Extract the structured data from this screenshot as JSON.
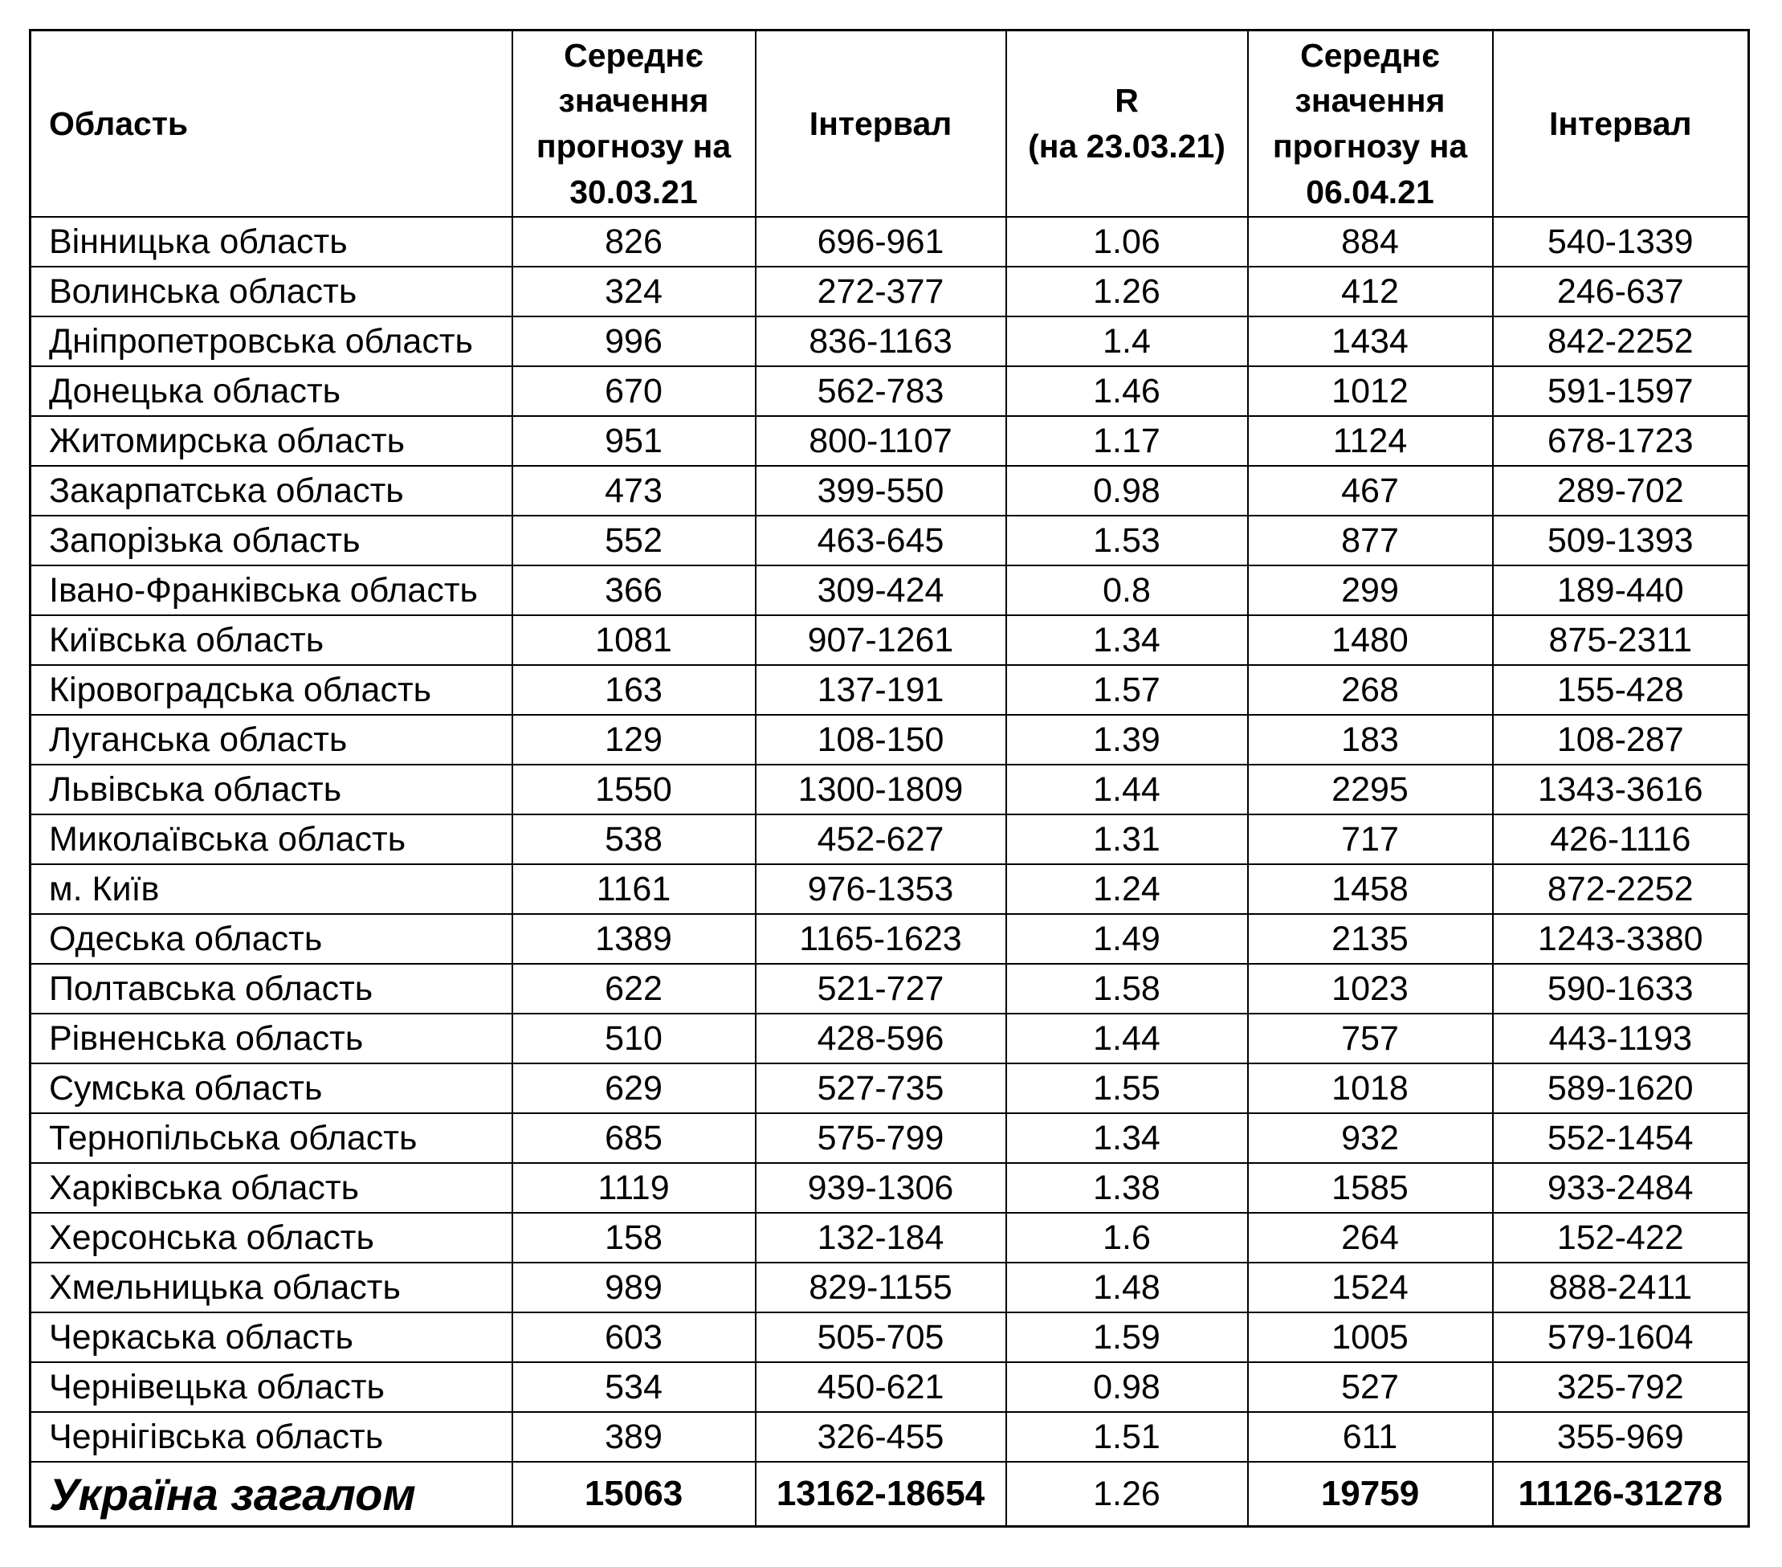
{
  "table": {
    "headers": {
      "region": "Область",
      "mean1": "Середнє\nзначення\nпрогнозу на\n30.03.21",
      "interval1": "Інтервал",
      "r": "R\n(на 23.03.21)",
      "mean2": "Середнє\nзначення\nпрогнозу на\n06.04.21",
      "interval2": "Інтервал"
    },
    "rows": [
      {
        "region": "Вінницька область",
        "mean1": "826",
        "interval1": "696-961",
        "r": "1.06",
        "mean2": "884",
        "interval2": "540-1339"
      },
      {
        "region": "Волинська область",
        "mean1": "324",
        "interval1": "272-377",
        "r": "1.26",
        "mean2": "412",
        "interval2": "246-637"
      },
      {
        "region": "Дніпропетровська область",
        "mean1": "996",
        "interval1": "836-1163",
        "r": "1.4",
        "mean2": "1434",
        "interval2": "842-2252"
      },
      {
        "region": "Донецька область",
        "mean1": "670",
        "interval1": "562-783",
        "r": "1.46",
        "mean2": "1012",
        "interval2": "591-1597"
      },
      {
        "region": "Житомирська область",
        "mean1": "951",
        "interval1": "800-1107",
        "r": "1.17",
        "mean2": "1124",
        "interval2": "678-1723"
      },
      {
        "region": "Закарпатська область",
        "mean1": "473",
        "interval1": "399-550",
        "r": "0.98",
        "mean2": "467",
        "interval2": "289-702"
      },
      {
        "region": "Запорізька область",
        "mean1": "552",
        "interval1": "463-645",
        "r": "1.53",
        "mean2": "877",
        "interval2": "509-1393"
      },
      {
        "region": "Івано-Франківська область",
        "mean1": "366",
        "interval1": "309-424",
        "r": "0.8",
        "mean2": "299",
        "interval2": "189-440"
      },
      {
        "region": "Київська область",
        "mean1": "1081",
        "interval1": "907-1261",
        "r": "1.34",
        "mean2": "1480",
        "interval2": "875-2311"
      },
      {
        "region": "Кіровоградська область",
        "mean1": "163",
        "interval1": "137-191",
        "r": "1.57",
        "mean2": "268",
        "interval2": "155-428"
      },
      {
        "region": "Луганська область",
        "mean1": "129",
        "interval1": "108-150",
        "r": "1.39",
        "mean2": "183",
        "interval2": "108-287"
      },
      {
        "region": "Львівська область",
        "mean1": "1550",
        "interval1": "1300-1809",
        "r": "1.44",
        "mean2": "2295",
        "interval2": "1343-3616"
      },
      {
        "region": "Миколаївська область",
        "mean1": "538",
        "interval1": "452-627",
        "r": "1.31",
        "mean2": "717",
        "interval2": "426-1116"
      },
      {
        "region": "м. Київ",
        "mean1": "1161",
        "interval1": "976-1353",
        "r": "1.24",
        "mean2": "1458",
        "interval2": "872-2252"
      },
      {
        "region": "Одеська область",
        "mean1": "1389",
        "interval1": "1165-1623",
        "r": "1.49",
        "mean2": "2135",
        "interval2": "1243-3380"
      },
      {
        "region": "Полтавська область",
        "mean1": "622",
        "interval1": "521-727",
        "r": "1.58",
        "mean2": "1023",
        "interval2": "590-1633"
      },
      {
        "region": "Рівненська область",
        "mean1": "510",
        "interval1": "428-596",
        "r": "1.44",
        "mean2": "757",
        "interval2": "443-1193"
      },
      {
        "region": "Сумська область",
        "mean1": "629",
        "interval1": "527-735",
        "r": "1.55",
        "mean2": "1018",
        "interval2": "589-1620"
      },
      {
        "region": "Тернопільська область",
        "mean1": "685",
        "interval1": "575-799",
        "r": "1.34",
        "mean2": "932",
        "interval2": "552-1454"
      },
      {
        "region": "Харківська область",
        "mean1": "1119",
        "interval1": "939-1306",
        "r": "1.38",
        "mean2": "1585",
        "interval2": "933-2484"
      },
      {
        "region": "Херсонська область",
        "mean1": "158",
        "interval1": "132-184",
        "r": "1.6",
        "mean2": "264",
        "interval2": "152-422"
      },
      {
        "region": "Хмельницька область",
        "mean1": "989",
        "interval1": "829-1155",
        "r": "1.48",
        "mean2": "1524",
        "interval2": "888-2411"
      },
      {
        "region": "Черкаська область",
        "mean1": "603",
        "interval1": "505-705",
        "r": "1.59",
        "mean2": "1005",
        "interval2": "579-1604"
      },
      {
        "region": "Чернівецька область",
        "mean1": "534",
        "interval1": "450-621",
        "r": "0.98",
        "mean2": "527",
        "interval2": "325-792"
      },
      {
        "region": "Чернігівська область",
        "mean1": "389",
        "interval1": "326-455",
        "r": "1.51",
        "mean2": "611",
        "interval2": "355-969"
      }
    ],
    "total": {
      "region": "Україна загалом",
      "mean1": "15063",
      "interval1": "13162-18654",
      "r": "1.26",
      "mean2": "19759",
      "interval2": "11126-31278"
    }
  }
}
